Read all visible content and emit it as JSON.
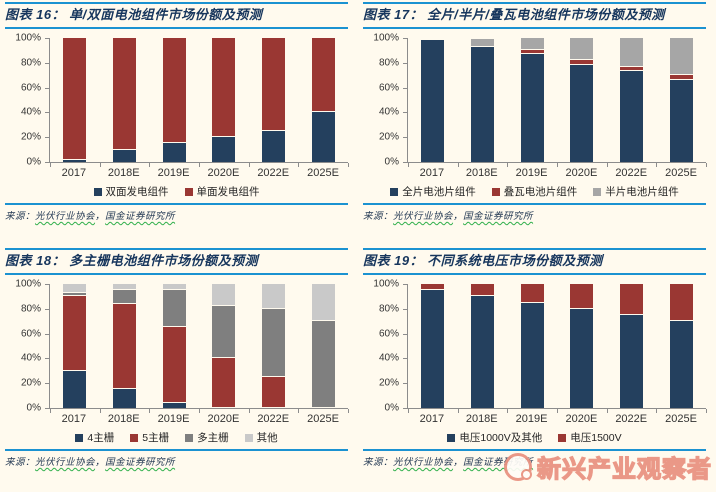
{
  "colors": {
    "background": "#FFFAEE",
    "rule_blue": "#1B92D1",
    "title_navy": "#17365D",
    "axis_gray": "#8C8C8C",
    "navy": "#24405E",
    "brick_red": "#9A3733",
    "gray": "#A6A6A6",
    "dark_gray": "#7F7F7F",
    "light_gray": "#C9C9C9",
    "watermark_salmon": "#E9907F",
    "squiggle_green": "#2FAF4B"
  },
  "y_ticks": [
    "100%",
    "80%",
    "60%",
    "40%",
    "20%",
    "0%"
  ],
  "source": {
    "prefix": "来源：",
    "org1": "光伏行业协会",
    "sep": "，",
    "org2": "国金证券研究所"
  },
  "watermark": {
    "text": "新兴产业观察者",
    "icon": "circle-logo"
  },
  "chart_data": [
    {
      "type": "bar",
      "stacked": true,
      "figure_label": "图表 16：",
      "title": "单/双面电池组件市场份额及预测",
      "categories": [
        "2017",
        "2018E",
        "2019E",
        "2020E",
        "2022E",
        "2025E"
      ],
      "ylim": [
        0,
        100
      ],
      "y_tick_step": 20,
      "grid": false,
      "legend_position": "bottom",
      "series": [
        {
          "name": "双面发电组件",
          "color": "#24405E",
          "values": [
            2,
            10,
            15,
            20,
            25,
            40
          ]
        },
        {
          "name": "单面发电组件",
          "color": "#9A3733",
          "values": [
            98,
            90,
            85,
            80,
            75,
            60
          ]
        }
      ]
    },
    {
      "type": "bar",
      "stacked": true,
      "figure_label": "图表 17：",
      "title": "全片/半片/叠瓦电池组件市场份额及预测",
      "categories": [
        "2017",
        "2018E",
        "2019E",
        "2020E",
        "2022E",
        "2025E"
      ],
      "ylim": [
        0,
        100
      ],
      "y_tick_step": 20,
      "grid": false,
      "legend_position": "bottom",
      "series": [
        {
          "name": "全片电池片组件",
          "color": "#24405E",
          "values": [
            98,
            93,
            87,
            78,
            73,
            66
          ]
        },
        {
          "name": "叠瓦电池片组件",
          "color": "#9A3733",
          "values": [
            0,
            0,
            3,
            4,
            4,
            4
          ]
        },
        {
          "name": "半片电池片组件",
          "color": "#A6A6A6",
          "values": [
            0,
            6,
            10,
            18,
            23,
            30
          ]
        }
      ]
    },
    {
      "type": "bar",
      "stacked": true,
      "figure_label": "图表 18：",
      "title": "多主栅电池组件市场份额及预测",
      "categories": [
        "2017",
        "2018E",
        "2019E",
        "2020E",
        "2022E",
        "2025E"
      ],
      "ylim": [
        0,
        100
      ],
      "y_tick_step": 20,
      "grid": false,
      "legend_position": "bottom",
      "series": [
        {
          "name": "4主栅",
          "color": "#24405E",
          "values": [
            30,
            15,
            4,
            0,
            0,
            0
          ]
        },
        {
          "name": "5主栅",
          "color": "#9A3733",
          "values": [
            60,
            69,
            61,
            40,
            25,
            0
          ]
        },
        {
          "name": "多主栅",
          "color": "#7F7F7F",
          "values": [
            3,
            11,
            30,
            42,
            55,
            70
          ]
        },
        {
          "name": "其他",
          "color": "#C9C9C9",
          "values": [
            7,
            5,
            5,
            18,
            20,
            30
          ]
        }
      ]
    },
    {
      "type": "bar",
      "stacked": true,
      "figure_label": "图表 19：",
      "title": "不同系统电压市场份额及预测",
      "categories": [
        "2017",
        "2018E",
        "2019E",
        "2020E",
        "2022E",
        "2025E"
      ],
      "ylim": [
        0,
        100
      ],
      "y_tick_step": 20,
      "grid": false,
      "legend_position": "bottom",
      "series": [
        {
          "name": "电压1000V及其他",
          "color": "#24405E",
          "values": [
            95,
            90,
            85,
            80,
            75,
            70
          ]
        },
        {
          "name": "电压1500V",
          "color": "#9A3733",
          "values": [
            5,
            10,
            15,
            20,
            25,
            30
          ]
        }
      ]
    }
  ]
}
